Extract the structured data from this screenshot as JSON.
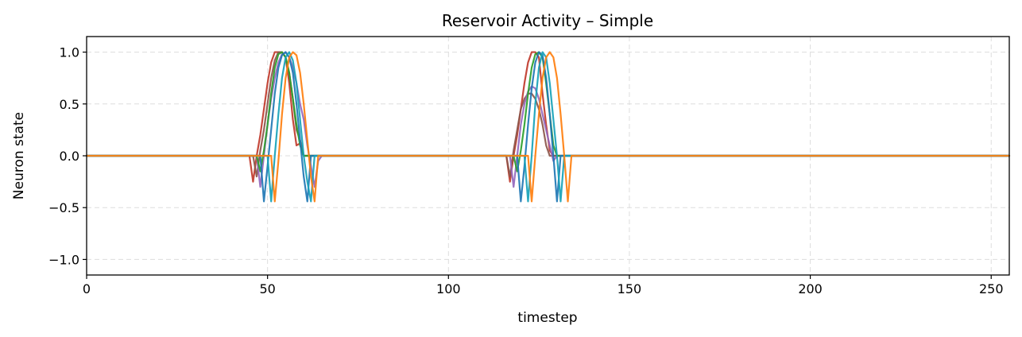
{
  "chart_data": {
    "type": "line",
    "title": "Reservoir Activity – Simple",
    "xlabel": "timestep",
    "ylabel": "Neuron state",
    "xlim": [
      0,
      255
    ],
    "ylim": [
      -1.15,
      1.15
    ],
    "xticks": [
      0,
      50,
      100,
      150,
      200,
      250
    ],
    "yticks": [
      -1.0,
      -0.5,
      0.0,
      0.5,
      1.0
    ],
    "ytick_labels": [
      "−1.0",
      "−0.5",
      "0.0",
      "0.5",
      "1.0"
    ],
    "grid": true,
    "legend": "none",
    "series": [
      {
        "color": "#c0392b",
        "x": [
          0,
          45,
          46,
          47,
          48,
          49,
          50,
          51,
          52,
          53,
          54,
          55,
          56,
          57,
          58,
          59,
          60,
          61,
          62,
          63,
          64,
          65,
          115,
          116,
          117,
          118,
          119,
          120,
          121,
          122,
          123,
          124,
          125,
          126,
          127,
          128,
          129,
          130,
          131,
          132,
          133,
          255
        ],
        "y": [
          0,
          0,
          -0.25,
          0.0,
          0.2,
          0.45,
          0.7,
          0.9,
          1.0,
          1.0,
          1.0,
          0.95,
          0.7,
          0.35,
          0.1,
          0.12,
          0.0,
          0,
          0,
          0,
          0,
          0,
          0,
          0,
          -0.25,
          0.0,
          0.2,
          0.45,
          0.7,
          0.9,
          1.0,
          1.0,
          0.95,
          0.6,
          0.3,
          0.05,
          0.0,
          0,
          0,
          0,
          0,
          0
        ]
      },
      {
        "color": "#8c564b",
        "x": [
          0,
          46,
          47,
          48,
          49,
          50,
          51,
          52,
          53,
          54,
          55,
          56,
          57,
          58,
          59,
          60,
          61,
          62,
          63,
          64,
          116,
          117,
          118,
          119,
          120,
          121,
          122,
          123,
          124,
          125,
          126,
          127,
          128,
          129,
          130,
          131,
          255
        ],
        "y": [
          0,
          0,
          -0.2,
          0.05,
          0.25,
          0.5,
          0.75,
          0.92,
          1.0,
          1.0,
          0.95,
          0.8,
          0.55,
          0.25,
          0.15,
          0.0,
          0,
          0,
          0,
          0,
          0,
          -0.2,
          0.05,
          0.25,
          0.45,
          0.55,
          0.6,
          0.6,
          0.55,
          0.45,
          0.3,
          0.1,
          0.0,
          0,
          0,
          0,
          0
        ]
      },
      {
        "color": "#9467bd",
        "x": [
          0,
          47,
          48,
          49,
          50,
          51,
          52,
          53,
          54,
          55,
          56,
          57,
          58,
          59,
          60,
          61,
          62,
          63,
          64,
          65,
          117,
          118,
          119,
          120,
          121,
          122,
          123,
          124,
          125,
          126,
          127,
          128,
          129,
          130,
          131,
          255
        ],
        "y": [
          0,
          0,
          -0.3,
          0.0,
          0.3,
          0.55,
          0.75,
          0.9,
          0.98,
          1.0,
          0.95,
          0.85,
          0.7,
          0.5,
          0.35,
          0.1,
          -0.1,
          -0.3,
          -0.05,
          0,
          0,
          -0.3,
          0.0,
          0.3,
          0.5,
          0.62,
          0.67,
          0.65,
          0.55,
          0.4,
          0.25,
          0.1,
          -0.05,
          0.0,
          0,
          0
        ]
      },
      {
        "color": "#2ca02c",
        "x": [
          0,
          47,
          48,
          49,
          50,
          51,
          52,
          53,
          54,
          55,
          56,
          57,
          58,
          59,
          60,
          61,
          62,
          118,
          119,
          120,
          121,
          122,
          123,
          124,
          125,
          126,
          127,
          128,
          129,
          130,
          131,
          255
        ],
        "y": [
          0,
          0,
          -0.15,
          0.05,
          0.3,
          0.6,
          0.85,
          0.98,
          1.0,
          0.95,
          0.8,
          0.55,
          0.3,
          0.1,
          0.0,
          0,
          0,
          0,
          -0.15,
          0.05,
          0.3,
          0.6,
          0.85,
          0.98,
          1.0,
          0.95,
          0.7,
          0.4,
          0.1,
          0.0,
          0,
          0
        ]
      },
      {
        "color": "#1f77b4",
        "x": [
          0,
          48,
          49,
          50,
          51,
          52,
          53,
          54,
          55,
          56,
          57,
          58,
          59,
          60,
          61,
          62,
          63,
          119,
          120,
          121,
          122,
          123,
          124,
          125,
          126,
          127,
          128,
          129,
          130,
          131,
          132,
          255
        ],
        "y": [
          0,
          0,
          -0.44,
          -0.1,
          0.25,
          0.6,
          0.85,
          0.97,
          1.0,
          0.95,
          0.8,
          0.5,
          0.15,
          -0.2,
          -0.44,
          0.0,
          0,
          0,
          -0.44,
          -0.1,
          0.3,
          0.65,
          0.9,
          1.0,
          0.97,
          0.75,
          0.4,
          0.0,
          -0.44,
          0.0,
          0,
          0
        ]
      },
      {
        "color": "#17a2b8",
        "x": [
          0,
          50,
          51,
          52,
          53,
          54,
          55,
          56,
          57,
          58,
          59,
          60,
          61,
          62,
          63,
          64,
          121,
          122,
          123,
          124,
          125,
          126,
          127,
          128,
          129,
          130,
          131,
          132,
          255
        ],
        "y": [
          0,
          0,
          -0.44,
          0.0,
          0.4,
          0.75,
          0.95,
          1.0,
          0.92,
          0.7,
          0.35,
          0.0,
          -0.25,
          -0.44,
          0.0,
          0,
          0,
          -0.44,
          0.0,
          0.5,
          0.85,
          1.0,
          0.95,
          0.7,
          0.35,
          0.0,
          -0.44,
          0.0,
          0
        ]
      },
      {
        "color": "#ff7f0e",
        "x": [
          0,
          51,
          52,
          53,
          54,
          55,
          56,
          57,
          58,
          59,
          60,
          61,
          62,
          63,
          64,
          122,
          123,
          124,
          125,
          126,
          127,
          128,
          129,
          130,
          131,
          132,
          133,
          134,
          255
        ],
        "y": [
          0,
          0,
          -0.44,
          -0.05,
          0.4,
          0.75,
          0.95,
          1.0,
          0.97,
          0.8,
          0.5,
          0.15,
          -0.2,
          -0.44,
          0.0,
          0,
          -0.44,
          0.0,
          0.4,
          0.75,
          0.95,
          1.0,
          0.95,
          0.75,
          0.4,
          0.0,
          -0.44,
          0.0,
          0
        ]
      }
    ]
  }
}
